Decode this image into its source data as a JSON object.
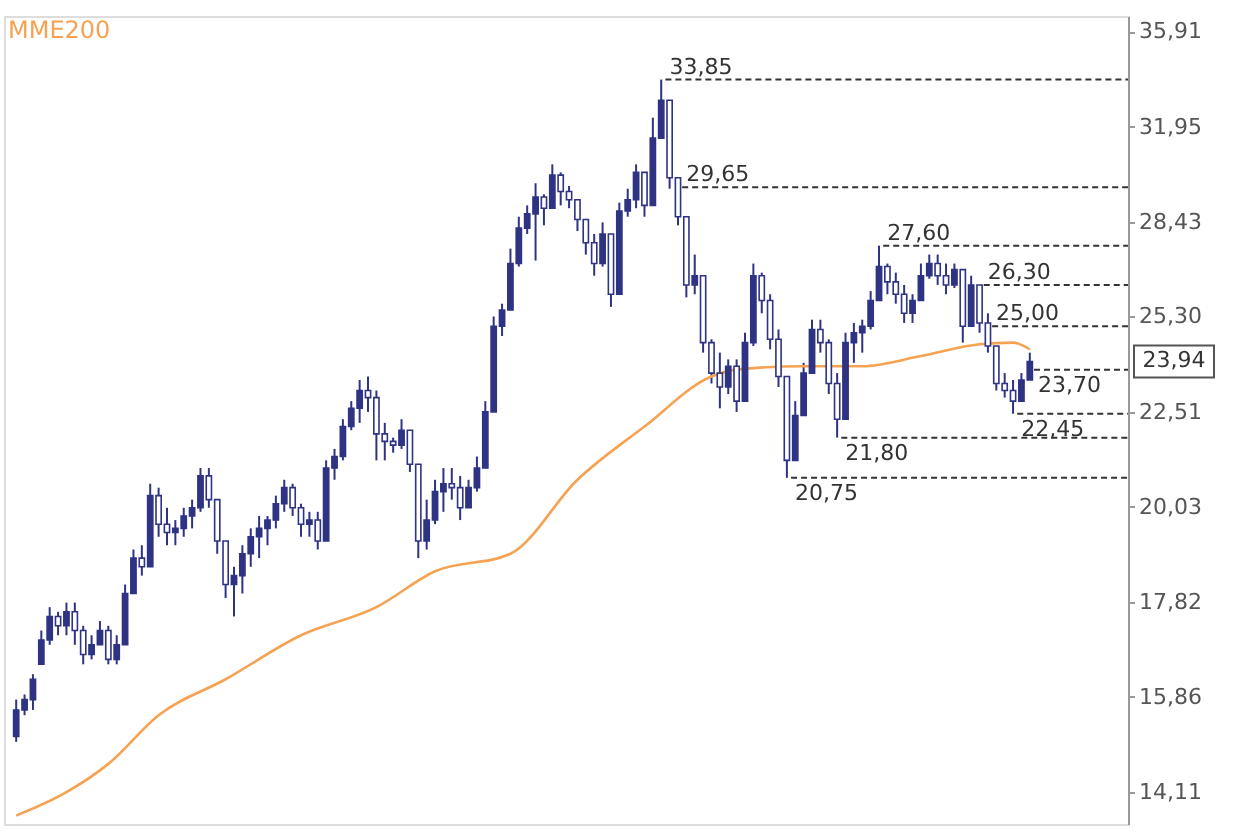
{
  "chart_data": {
    "type": "candlestick",
    "color": "#2e3383",
    "categories": [
      null,
      null,
      null,
      null,
      null,
      null,
      null,
      null,
      null,
      null,
      null,
      null,
      null,
      null,
      null,
      null,
      null,
      null,
      null,
      null,
      null,
      null,
      null,
      null,
      null,
      null,
      null,
      null,
      null,
      null,
      null,
      null,
      null,
      null,
      null,
      null,
      null,
      null,
      null,
      null,
      null,
      null,
      null,
      null,
      null,
      null,
      null,
      null,
      null,
      null,
      null,
      null,
      null,
      null,
      null,
      null,
      null,
      null,
      null,
      null,
      null,
      null,
      null,
      null,
      null,
      null,
      null,
      null,
      null,
      null,
      null,
      null,
      null,
      null,
      null,
      null,
      null,
      null,
      null,
      null,
      null,
      null,
      null,
      null,
      null,
      null,
      null,
      null,
      null,
      null,
      null,
      null,
      null,
      null,
      null,
      null,
      null,
      null,
      null,
      null,
      null,
      null,
      null,
      null,
      null,
      null,
      null,
      null,
      null,
      null,
      null,
      null,
      null,
      null,
      null,
      null,
      null,
      null,
      null,
      null,
      null,
      null
    ],
    "ohlc": [
      [
        15.1,
        15.8,
        15.0,
        15.6
      ],
      [
        15.6,
        15.9,
        15.5,
        15.8
      ],
      [
        15.8,
        16.3,
        15.6,
        16.2
      ],
      [
        16.5,
        17.2,
        16.5,
        17.0
      ],
      [
        17.0,
        17.7,
        16.9,
        17.5
      ],
      [
        17.5,
        17.6,
        17.1,
        17.3
      ],
      [
        17.3,
        17.8,
        17.1,
        17.6
      ],
      [
        17.6,
        17.8,
        16.9,
        17.2
      ],
      [
        17.2,
        17.3,
        16.5,
        16.7
      ],
      [
        16.7,
        17.1,
        16.6,
        16.9
      ],
      [
        16.9,
        17.4,
        16.9,
        17.2
      ],
      [
        17.2,
        17.3,
        16.5,
        16.6
      ],
      [
        16.6,
        17.1,
        16.5,
        16.9
      ],
      [
        16.9,
        18.2,
        16.9,
        18.0
      ],
      [
        18.0,
        19.0,
        18.0,
        18.8
      ],
      [
        18.8,
        19.1,
        18.4,
        18.6
      ],
      [
        18.6,
        20.6,
        18.6,
        20.3
      ],
      [
        20.3,
        20.5,
        19.3,
        19.6
      ],
      [
        19.6,
        20.0,
        19.1,
        19.4
      ],
      [
        19.4,
        19.7,
        19.1,
        19.5
      ],
      [
        19.5,
        20.0,
        19.3,
        19.8
      ],
      [
        19.8,
        20.2,
        19.5,
        20.0
      ],
      [
        20.0,
        21.0,
        19.9,
        20.8
      ],
      [
        20.8,
        21.0,
        20.0,
        20.2
      ],
      [
        20.2,
        20.2,
        18.9,
        19.2
      ],
      [
        19.2,
        19.2,
        17.9,
        18.2
      ],
      [
        18.2,
        18.6,
        17.5,
        18.4
      ],
      [
        18.4,
        19.1,
        18.0,
        18.9
      ],
      [
        18.9,
        19.5,
        18.6,
        19.3
      ],
      [
        19.3,
        19.8,
        18.8,
        19.5
      ],
      [
        19.5,
        19.8,
        19.1,
        19.7
      ],
      [
        19.7,
        20.3,
        19.5,
        20.1
      ],
      [
        20.1,
        20.7,
        19.9,
        20.5
      ],
      [
        20.5,
        20.6,
        19.8,
        20.0
      ],
      [
        20.0,
        20.1,
        19.3,
        19.6
      ],
      [
        19.6,
        19.9,
        19.3,
        19.7
      ],
      [
        19.7,
        19.9,
        19.0,
        19.2
      ],
      [
        19.2,
        21.2,
        19.2,
        21.0
      ],
      [
        21.0,
        21.5,
        20.7,
        21.3
      ],
      [
        21.3,
        22.3,
        21.2,
        22.1
      ],
      [
        22.1,
        22.8,
        22.0,
        22.6
      ],
      [
        22.6,
        23.4,
        22.2,
        23.1
      ],
      [
        23.1,
        23.5,
        22.5,
        22.9
      ],
      [
        22.9,
        23.1,
        21.2,
        21.9
      ],
      [
        21.9,
        22.2,
        21.2,
        21.7
      ],
      [
        21.7,
        21.8,
        21.4,
        21.6
      ],
      [
        21.6,
        22.3,
        21.5,
        22.0
      ],
      [
        22.0,
        22.0,
        20.9,
        21.1
      ],
      [
        21.1,
        21.1,
        18.8,
        19.2
      ],
      [
        19.2,
        20.2,
        19.0,
        19.7
      ],
      [
        19.7,
        20.7,
        19.6,
        20.4
      ],
      [
        20.4,
        21.0,
        19.9,
        20.6
      ],
      [
        20.6,
        21.0,
        20.2,
        20.5
      ],
      [
        20.5,
        20.8,
        19.7,
        20.0
      ],
      [
        20.0,
        20.7,
        20.0,
        20.5
      ],
      [
        20.5,
        21.3,
        20.4,
        21.0
      ],
      [
        21.0,
        22.8,
        21.0,
        22.5
      ],
      [
        22.5,
        25.3,
        22.5,
        25.0
      ],
      [
        25.0,
        25.7,
        24.7,
        25.5
      ],
      [
        25.5,
        27.5,
        25.5,
        27.0
      ],
      [
        27.0,
        28.6,
        26.9,
        28.2
      ],
      [
        28.2,
        29.0,
        28.0,
        28.7
      ],
      [
        28.7,
        29.8,
        27.1,
        29.3
      ],
      [
        29.3,
        29.4,
        28.3,
        28.9
      ],
      [
        28.9,
        30.5,
        28.9,
        30.1
      ],
      [
        30.1,
        30.2,
        29.0,
        29.5
      ],
      [
        29.5,
        29.7,
        28.9,
        29.2
      ],
      [
        29.2,
        29.2,
        28.1,
        28.5
      ],
      [
        28.5,
        28.5,
        27.3,
        27.7
      ],
      [
        27.7,
        28.0,
        26.6,
        27.0
      ],
      [
        27.0,
        28.4,
        26.9,
        28.0
      ],
      [
        28.0,
        28.0,
        25.6,
        26.0
      ],
      [
        26.0,
        29.1,
        26.0,
        28.8
      ],
      [
        28.8,
        29.6,
        28.6,
        29.2
      ],
      [
        29.2,
        30.5,
        28.9,
        30.2
      ],
      [
        30.2,
        30.2,
        28.6,
        29.0
      ],
      [
        29.0,
        32.3,
        29.0,
        31.5
      ],
      [
        31.5,
        33.85,
        31.5,
        33.0
      ],
      [
        33.0,
        33.0,
        29.6,
        30.0
      ],
      [
        30.0,
        30.0,
        28.3,
        28.6
      ],
      [
        28.6,
        28.6,
        25.9,
        26.3
      ],
      [
        26.3,
        27.3,
        26.0,
        26.6
      ],
      [
        26.6,
        26.6,
        24.2,
        24.5
      ],
      [
        24.5,
        24.6,
        23.3,
        23.6
      ],
      [
        23.6,
        24.2,
        22.6,
        23.2
      ],
      [
        23.2,
        24.0,
        23.0,
        23.8
      ],
      [
        23.8,
        24.0,
        22.5,
        22.8
      ],
      [
        22.8,
        24.8,
        22.8,
        24.5
      ],
      [
        24.5,
        27.0,
        24.4,
        26.6
      ],
      [
        26.6,
        26.7,
        25.4,
        25.8
      ],
      [
        25.8,
        26.0,
        24.3,
        24.6
      ],
      [
        24.6,
        24.9,
        23.2,
        23.5
      ],
      [
        23.5,
        23.5,
        20.75,
        21.2
      ],
      [
        21.2,
        22.8,
        21.2,
        22.4
      ],
      [
        22.4,
        23.9,
        22.4,
        23.6
      ],
      [
        23.6,
        25.2,
        23.6,
        24.9
      ],
      [
        24.9,
        25.2,
        24.2,
        24.5
      ],
      [
        24.5,
        24.6,
        23.0,
        23.3
      ],
      [
        23.3,
        23.6,
        21.8,
        22.3
      ],
      [
        22.3,
        24.8,
        22.3,
        24.5
      ],
      [
        24.5,
        25.1,
        23.9,
        24.8
      ],
      [
        24.8,
        25.2,
        24.2,
        25.0
      ],
      [
        25.0,
        26.1,
        24.9,
        25.8
      ],
      [
        25.8,
        27.6,
        25.8,
        26.9
      ],
      [
        26.9,
        27.0,
        26.0,
        26.4
      ],
      [
        26.4,
        26.7,
        25.7,
        26.0
      ],
      [
        26.0,
        26.3,
        25.1,
        25.4
      ],
      [
        25.4,
        26.0,
        25.1,
        25.8
      ],
      [
        25.8,
        27.0,
        25.8,
        26.6
      ],
      [
        26.6,
        27.3,
        26.5,
        27.0
      ],
      [
        27.0,
        27.3,
        26.3,
        26.6
      ],
      [
        26.6,
        27.0,
        26.0,
        26.3
      ],
      [
        26.3,
        27.0,
        26.2,
        26.8
      ],
      [
        26.8,
        26.8,
        24.5,
        25.0
      ],
      [
        25.0,
        26.6,
        25.0,
        26.3
      ],
      [
        26.3,
        26.3,
        24.8,
        25.1
      ],
      [
        25.1,
        25.4,
        24.2,
        24.4
      ],
      [
        24.4,
        24.4,
        23.1,
        23.3
      ],
      [
        23.3,
        23.6,
        22.9,
        23.1
      ],
      [
        23.1,
        23.4,
        22.45,
        22.8
      ],
      [
        22.8,
        23.6,
        22.8,
        23.4
      ],
      [
        23.4,
        24.2,
        23.4,
        23.94
      ]
    ],
    "series": [
      {
        "name": "MME200",
        "type": "line",
        "color": "#f5a352",
        "values": [
          13.7,
          null,
          null,
          null,
          null,
          null,
          14.1,
          null,
          null,
          null,
          null,
          14.6,
          null,
          null,
          null,
          null,
          null,
          15.5,
          null,
          null,
          null,
          null,
          null,
          null,
          null,
          16.2,
          null,
          null,
          null,
          null,
          null,
          null,
          null,
          null,
          17.1,
          null,
          null,
          null,
          null,
          null,
          null,
          null,
          null,
          17.7,
          null,
          null,
          null,
          null,
          null,
          null,
          18.5,
          null,
          null,
          null,
          null,
          null,
          null,
          null,
          null,
          18.9,
          null,
          null,
          null,
          null,
          null,
          null,
          null,
          20.7,
          null,
          null,
          null,
          null,
          null,
          null,
          null,
          22.1,
          null,
          null,
          null,
          null,
          null,
          null,
          null,
          23.5,
          null,
          null,
          23.7,
          null,
          null,
          null,
          null,
          null,
          null,
          null,
          23.8,
          null,
          null,
          null,
          null,
          null,
          null,
          23.8,
          null,
          null,
          null,
          null,
          null,
          null,
          24.1,
          null,
          null,
          null,
          null,
          null,
          null,
          24.45,
          null,
          null,
          null,
          24.5,
          null,
          24.3
        ]
      }
    ],
    "log": "y",
    "ylim": [
      13.56,
      36.6
    ],
    "yticks": [
      {
        "value": 14.11,
        "label": "14,11"
      },
      {
        "value": 15.86,
        "label": "15,86"
      },
      {
        "value": 17.82,
        "label": "17,82"
      },
      {
        "value": 20.03,
        "label": "20,03"
      },
      {
        "value": 22.51,
        "label": "22,51"
      },
      {
        "value": 25.3,
        "label": "25,30"
      },
      {
        "value": 28.43,
        "label": "28,43"
      },
      {
        "value": 31.95,
        "label": "31,95"
      },
      {
        "value": 35.91,
        "label": "35,91"
      }
    ],
    "tick_labels": "y",
    "grid": false,
    "ref_lines": [
      {
        "axis": "y",
        "value": 33.85,
        "label": "33,85",
        "color": "#333333",
        "line_style": "dashed"
      },
      {
        "axis": "y",
        "value": 29.65,
        "label": "29,65",
        "color": "#333333",
        "line_style": "dashed"
      },
      {
        "axis": "y",
        "value": 27.6,
        "label": "27,60",
        "color": "#333333",
        "line_style": "dashed"
      },
      {
        "axis": "y",
        "value": 26.3,
        "label": "26,30",
        "color": "#333333",
        "line_style": "dashed"
      },
      {
        "axis": "y",
        "value": 25.0,
        "label": "25,00",
        "color": "#333333",
        "line_style": "dashed"
      },
      {
        "axis": "y",
        "value": 23.7,
        "label": "23,70",
        "color": "#333333",
        "line_style": "dashed"
      },
      {
        "axis": "y",
        "value": 22.45,
        "label": "22,45",
        "color": "#333333",
        "line_style": "dashed"
      },
      {
        "axis": "y",
        "value": 21.8,
        "label": "21,80",
        "color": "#333333",
        "line_style": "dashed"
      },
      {
        "axis": "y",
        "value": 20.75,
        "label": "20,75",
        "color": "#333333",
        "line_style": "dashed"
      }
    ],
    "annotations": [
      "23,94"
    ]
  }
}
